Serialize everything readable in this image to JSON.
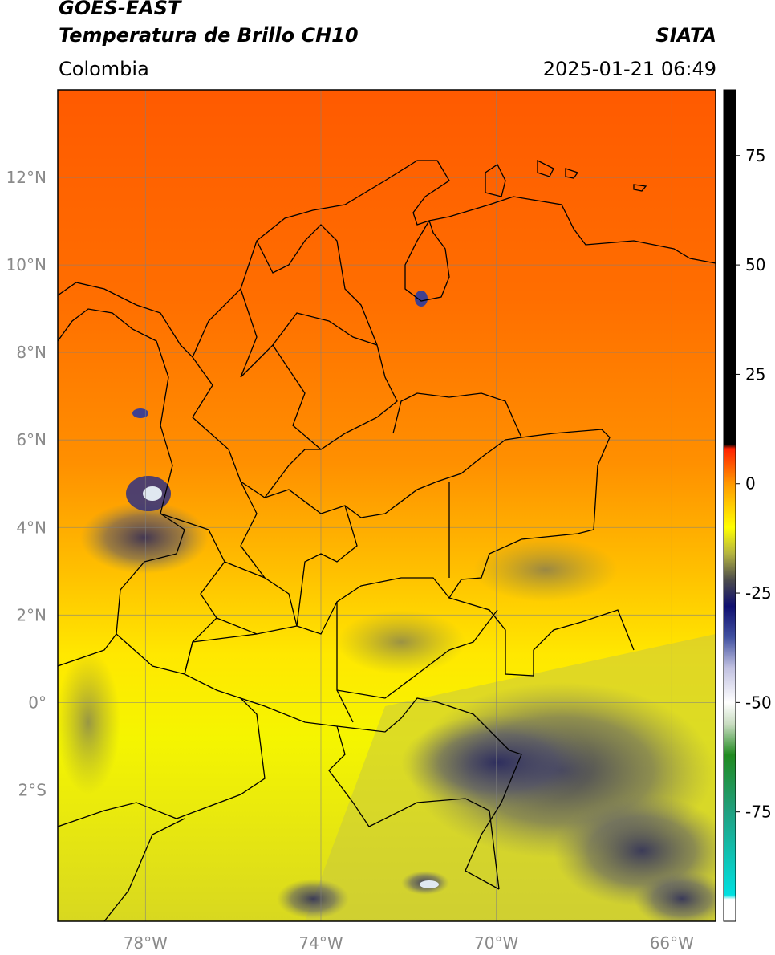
{
  "header": {
    "satellite": "GOES-EAST",
    "product": "Temperatura de Brillo CH10",
    "region": "Colombia",
    "agency": "SIATA",
    "datetime": "2025-01-21 06:49"
  },
  "map": {
    "lon_range": [
      -80,
      -65
    ],
    "lat_range": [
      -5,
      14
    ],
    "lon_ticks": [
      {
        "value": -78,
        "label": "78°W"
      },
      {
        "value": -74,
        "label": "74°W"
      },
      {
        "value": -70,
        "label": "70°W"
      },
      {
        "value": -66,
        "label": "66°W"
      }
    ],
    "lat_ticks": [
      {
        "value": 12,
        "label": "12°N"
      },
      {
        "value": 10,
        "label": "10°N"
      },
      {
        "value": 8,
        "label": "8°N"
      },
      {
        "value": 6,
        "label": "6°N"
      },
      {
        "value": 4,
        "label": "4°N"
      },
      {
        "value": 2,
        "label": "2°N"
      },
      {
        "value": 0,
        "label": "0°"
      },
      {
        "value": -2,
        "label": "2°S"
      }
    ],
    "grid": true
  },
  "colorbar": {
    "range": [
      -100,
      90
    ],
    "ticks": [
      {
        "value": 75,
        "label": "75"
      },
      {
        "value": 50,
        "label": "50"
      },
      {
        "value": 25,
        "label": "25"
      },
      {
        "value": 0,
        "label": "0"
      },
      {
        "value": -25,
        "label": "-25"
      },
      {
        "value": -50,
        "label": "-50"
      },
      {
        "value": -75,
        "label": "-75"
      }
    ],
    "stops": [
      {
        "value": -100,
        "color": "#ffffff"
      },
      {
        "value": -95,
        "color": "#ffffff"
      },
      {
        "value": -94,
        "color": "#00e0e0"
      },
      {
        "value": -75,
        "color": "#20a080"
      },
      {
        "value": -62,
        "color": "#208a20"
      },
      {
        "value": -55,
        "color": "#c8dcc0"
      },
      {
        "value": -50,
        "color": "#ffffff"
      },
      {
        "value": -42,
        "color": "#c0c0e0"
      },
      {
        "value": -35,
        "color": "#4050a0"
      },
      {
        "value": -28,
        "color": "#101070"
      },
      {
        "value": -22,
        "color": "#4c4c4c"
      },
      {
        "value": -16,
        "color": "#b4b440"
      },
      {
        "value": -10,
        "color": "#ffff00"
      },
      {
        "value": 0,
        "color": "#ff9900"
      },
      {
        "value": 8,
        "color": "#ff2000"
      },
      {
        "value": 9,
        "color": "#000000"
      },
      {
        "value": 90,
        "color": "#000000"
      }
    ]
  }
}
